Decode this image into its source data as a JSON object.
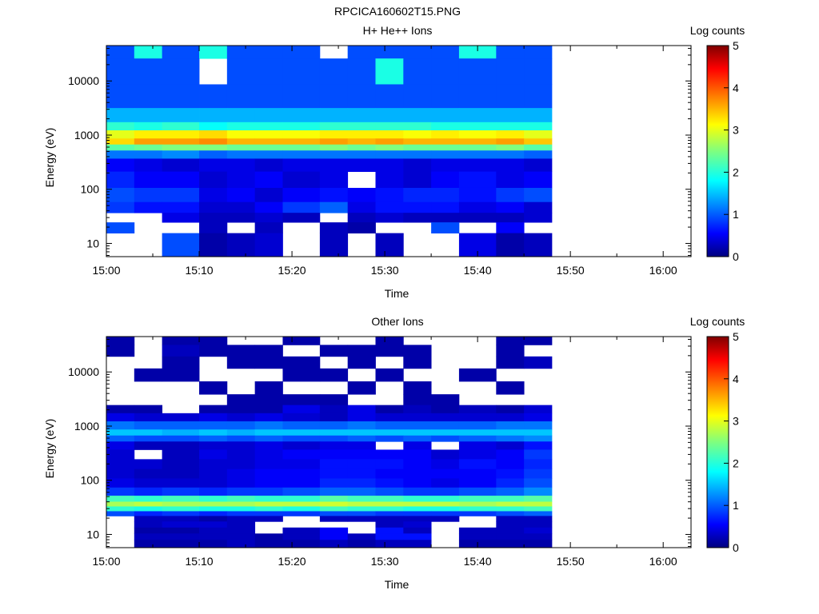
{
  "figure_title": "RPCICA160602T15.PNG",
  "panels": [
    {
      "title": "H+ He++ Ions",
      "xlabel": "Time",
      "ylabel": "Energy (eV)",
      "colorbar_label": "Log counts"
    },
    {
      "title": "Other Ions",
      "xlabel": "Time",
      "ylabel": "Energy (eV)",
      "colorbar_label": "Log counts"
    }
  ],
  "x_tick_labels": [
    "15:00",
    "15:10",
    "15:20",
    "15:30",
    "15:40",
    "15:50",
    "16:00"
  ],
  "y_tick_labels": [
    "10",
    "100",
    "1000",
    "10000"
  ],
  "colorbar_tick_labels": [
    "0",
    "1",
    "2",
    "3",
    "4",
    "5"
  ],
  "chart_data": [
    {
      "type": "heatmap",
      "title": "H+ He++ Ions",
      "xlabel": "Time",
      "ylabel": "Energy (eV)",
      "colorbar_label": "Log counts",
      "xlim": [
        "15:00",
        "16:03"
      ],
      "data_end": "15:48",
      "time_bins": [
        "15:00",
        "15:03",
        "15:06",
        "15:10",
        "15:13",
        "15:16",
        "15:19",
        "15:23",
        "15:26",
        "15:29",
        "15:32",
        "15:35",
        "15:38",
        "15:42",
        "15:45"
      ],
      "energy_bins_eV": [
        45000,
        15000,
        5000,
        2000,
        1500,
        1000,
        750,
        600,
        450,
        300,
        150,
        75,
        45,
        30,
        20,
        12
      ],
      "values": [
        [
          1,
          2,
          1,
          2,
          1,
          1,
          1,
          0,
          1,
          1,
          1,
          1,
          2,
          1,
          1
        ],
        [
          1,
          1,
          1,
          0,
          1,
          1,
          1,
          1,
          1,
          2,
          1,
          1,
          1,
          1,
          1
        ],
        [
          1,
          1,
          1,
          1,
          1,
          1,
          1,
          1,
          1,
          1,
          1,
          1,
          1,
          1,
          1
        ],
        [
          1.5,
          1.5,
          1.5,
          1.5,
          1.5,
          1.5,
          1.5,
          1.5,
          1.5,
          1.5,
          1.5,
          1.5,
          1.5,
          1.5,
          1.5
        ],
        [
          2.1,
          2.0,
          2.1,
          1.9,
          2.0,
          2.0,
          2.0,
          2.1,
          2.1,
          2.1,
          2.1,
          2.0,
          2.0,
          2.0,
          2.0
        ],
        [
          3.0,
          3.2,
          3.2,
          3.3,
          3.1,
          3.1,
          3.1,
          3.2,
          3.2,
          3.2,
          3.1,
          3.2,
          3.1,
          3.2,
          3.0
        ],
        [
          3.3,
          3.6,
          3.6,
          3.7,
          3.5,
          3.5,
          3.5,
          3.6,
          3.5,
          3.6,
          3.5,
          3.5,
          3.5,
          3.6,
          3.4
        ],
        [
          2.3,
          2.4,
          2.5,
          2.5,
          2.4,
          2.4,
          2.4,
          2.5,
          2.4,
          2.5,
          2.4,
          2.4,
          2.4,
          2.5,
          2.3
        ],
        [
          1.2,
          1.2,
          1.3,
          1.1,
          1.2,
          1.2,
          1.2,
          1.2,
          1.2,
          1.2,
          1.2,
          1.2,
          1.2,
          1.2,
          1.1
        ],
        [
          0.6,
          0.5,
          0.4,
          0.5,
          0.5,
          0.4,
          0.5,
          0.5,
          0.5,
          0.5,
          0.4,
          0.5,
          0.5,
          0.5,
          0.4
        ],
        [
          0.8,
          0.6,
          0.6,
          0.4,
          0.5,
          0.6,
          0.4,
          0.5,
          0,
          0.5,
          0.4,
          0.6,
          0.7,
          0.5,
          0.6
        ],
        [
          1.0,
          0.9,
          0.9,
          0.5,
          0.6,
          0.4,
          0.6,
          0.7,
          0.6,
          0.7,
          0.8,
          0.8,
          0.7,
          0.9,
          1.0
        ],
        [
          0.9,
          0.7,
          0.7,
          0.4,
          0.4,
          0.6,
          0.9,
          1.1,
          0.5,
          0.7,
          0.7,
          0.7,
          0.5,
          0.6,
          0.4
        ],
        [
          0,
          0,
          0.5,
          0.3,
          0.3,
          0.4,
          0.3,
          0,
          0.3,
          0.4,
          0.3,
          0.3,
          0.3,
          0.3,
          0.4
        ],
        [
          1,
          0,
          0,
          0.3,
          0,
          0.3,
          0,
          0.3,
          0.2,
          0,
          0,
          1,
          0,
          0.6,
          0
        ],
        [
          0,
          0,
          1,
          0.2,
          0.3,
          0.4,
          0,
          0.3,
          0,
          0.3,
          0,
          0,
          0.5,
          0.2,
          0.3
        ]
      ]
    },
    {
      "type": "heatmap",
      "title": "Other Ions",
      "xlabel": "Time",
      "ylabel": "Energy (eV)",
      "colorbar_label": "Log counts",
      "xlim": [
        "15:00",
        "16:03"
      ],
      "data_end": "15:48",
      "time_bins": [
        "15:00",
        "15:03",
        "15:06",
        "15:10",
        "15:13",
        "15:16",
        "15:19",
        "15:23",
        "15:26",
        "15:29",
        "15:32",
        "15:35",
        "15:38",
        "15:42",
        "15:45"
      ],
      "energy_bins_eV": [
        40000,
        25000,
        15000,
        9000,
        5000,
        3000,
        2000,
        1500,
        1000,
        750,
        600,
        450,
        300,
        200,
        130,
        90,
        60,
        45,
        36,
        30,
        24,
        20,
        15,
        12,
        9,
        7
      ],
      "values": [
        [
          0.2,
          0,
          0.2,
          0.2,
          0,
          0,
          0.2,
          0,
          0,
          0.2,
          0,
          0,
          0,
          0.2,
          0.2
        ],
        [
          0.2,
          0,
          0.3,
          0.2,
          0.2,
          0.2,
          0,
          0.2,
          0.2,
          0.2,
          0.2,
          0,
          0,
          0.2,
          0
        ],
        [
          0,
          0,
          0.2,
          0,
          0.2,
          0.2,
          0.2,
          0,
          0.2,
          0,
          0.2,
          0,
          0,
          0.2,
          0.3
        ],
        [
          0,
          0.2,
          0.2,
          0,
          0,
          0,
          0.2,
          0.2,
          0,
          0.2,
          0,
          0,
          0.2,
          0,
          0
        ],
        [
          0,
          0,
          0,
          0.2,
          0,
          0.2,
          0,
          0,
          0.2,
          0,
          0.2,
          0,
          0,
          0.2,
          0
        ],
        [
          0,
          0,
          0,
          0,
          0.2,
          0.2,
          0.2,
          0.2,
          0,
          0,
          0.2,
          0.2,
          0,
          0,
          0
        ],
        [
          0.2,
          0.2,
          0,
          0.2,
          0.2,
          0.2,
          0.5,
          0.3,
          0.5,
          0.2,
          0.3,
          0.2,
          0.3,
          0.2,
          0.4
        ],
        [
          0.5,
          0.4,
          0.4,
          0.5,
          0.4,
          0.5,
          0.4,
          0.3,
          0.5,
          0.4,
          0.4,
          0.4,
          0.4,
          0.4,
          0.5
        ],
        [
          1.2,
          1.1,
          1.1,
          1.1,
          1.1,
          1.2,
          1.1,
          1.1,
          1.2,
          1.1,
          1.1,
          1.1,
          1.1,
          1.2,
          1.2
        ],
        [
          1.6,
          1.6,
          1.5,
          1.6,
          1.5,
          1.6,
          1.6,
          1.6,
          1.6,
          1.6,
          1.6,
          1.6,
          1.6,
          1.6,
          1.6
        ],
        [
          1.1,
          1.0,
          1.0,
          1.1,
          1.0,
          1.1,
          1.0,
          1.0,
          1.1,
          1.0,
          1.1,
          1.0,
          1.1,
          1.2,
          1.3
        ],
        [
          0.5,
          0.3,
          0.3,
          0.4,
          0.4,
          0.5,
          0.4,
          0.5,
          0.5,
          0,
          0.5,
          0,
          0.5,
          0.4,
          0.7
        ],
        [
          0.4,
          0,
          0.3,
          0.5,
          0.4,
          0.5,
          0.6,
          0.6,
          0.6,
          0.6,
          0.6,
          0.4,
          0.5,
          0.6,
          0.9
        ],
        [
          0.4,
          0.4,
          0.3,
          0.4,
          0.4,
          0.5,
          0.5,
          0.7,
          0.7,
          0.7,
          0.6,
          0.5,
          0.7,
          0.6,
          0.8
        ],
        [
          0.4,
          0.3,
          0.3,
          0.4,
          0.5,
          0.6,
          0.6,
          0.7,
          0.7,
          0.6,
          0.6,
          0.6,
          0.6,
          0.7,
          0.9
        ],
        [
          0.5,
          0.4,
          0.4,
          0.4,
          0.5,
          0.6,
          0.6,
          0.8,
          0.8,
          0.7,
          0.6,
          0.5,
          0.6,
          0.8,
          1.0
        ],
        [
          0.9,
          0.8,
          0.9,
          0.8,
          0.9,
          0.9,
          1.0,
          1.1,
          1.1,
          1.0,
          0.9,
          0.9,
          1.0,
          1.1,
          1.3
        ],
        [
          2.2,
          2.1,
          2.2,
          2.1,
          2.2,
          2.1,
          2.1,
          2.3,
          2.2,
          2.2,
          2.1,
          2.1,
          2.2,
          2.2,
          2.3
        ],
        [
          2.7,
          2.8,
          2.7,
          2.7,
          2.7,
          2.8,
          2.8,
          2.9,
          2.8,
          2.8,
          2.8,
          2.8,
          2.7,
          2.8,
          2.8
        ],
        [
          2.1,
          2.0,
          2.1,
          2.0,
          2.0,
          2.1,
          2.0,
          2.2,
          2.1,
          2.1,
          2.0,
          2.0,
          2.1,
          2.1,
          2.2
        ],
        [
          1.0,
          0.8,
          0.9,
          0.8,
          0.9,
          0.9,
          0.9,
          1.0,
          1.0,
          0.9,
          0.9,
          0.9,
          0.9,
          1.0,
          1.1
        ],
        [
          0,
          0.3,
          0.3,
          0.2,
          0.3,
          0.3,
          0,
          0.3,
          0.3,
          0.3,
          0.3,
          0.3,
          0,
          0.3,
          0.3
        ],
        [
          0,
          0.3,
          0.4,
          0.4,
          0.3,
          0,
          0,
          0,
          0,
          0.3,
          0.4,
          0,
          0,
          0.3,
          0.3
        ],
        [
          0,
          0.2,
          0.2,
          0.3,
          0.3,
          0,
          0.3,
          0.6,
          0,
          0.7,
          0.3,
          0,
          0.3,
          0.3,
          0.4
        ],
        [
          0,
          0.3,
          0.3,
          0.3,
          0.3,
          0.2,
          0.3,
          0.6,
          0.3,
          0.7,
          0.7,
          0,
          0.3,
          0.3,
          0.3
        ],
        [
          0,
          0.2,
          0.2,
          0.2,
          0.3,
          0.2,
          0.2,
          0.3,
          0.2,
          0.3,
          0.3,
          0,
          0.2,
          0.2,
          0.2
        ]
      ]
    }
  ]
}
